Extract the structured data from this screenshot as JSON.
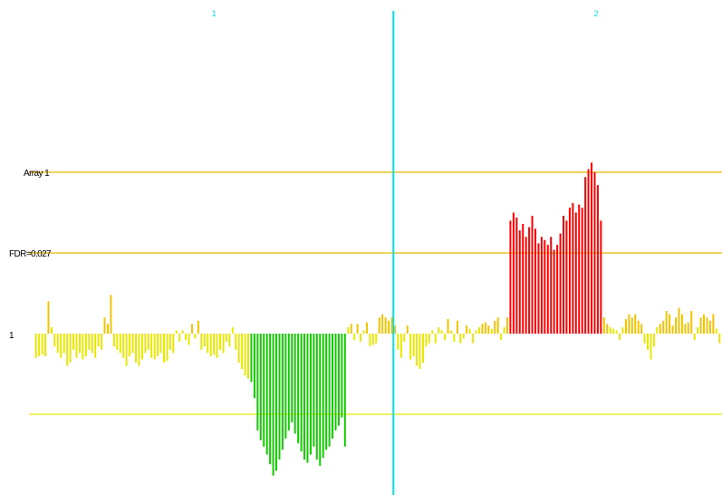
{
  "chart_data": {
    "type": "bar",
    "title": "",
    "xlabel": "",
    "ylabel": "",
    "chromosomes": [
      {
        "label": "1",
        "start": 0,
        "end": 115
      },
      {
        "label": "2",
        "start": 115,
        "end": 245
      }
    ],
    "ylim": [
      -1.0,
      1.25
    ],
    "baseline": {
      "value": 0,
      "label": "1"
    },
    "reference_lines": [
      {
        "label": "Array 1",
        "value": 1.0,
        "color": "#e6b800"
      },
      {
        "label": "FDR=0.027",
        "value": 0.5,
        "color": "#e6b800"
      },
      {
        "label": "",
        "value": -0.5,
        "color": "#e6e600"
      }
    ],
    "colors": {
      "neutral": "#e8e800",
      "mild_gain": "#f2c300",
      "gain": "#ff0000",
      "loss": "#11cc00",
      "divider": "#00e5ee"
    },
    "series": [
      {
        "values": [
          -0.15,
          -0.14,
          -0.13,
          -0.14,
          0.2,
          0.04,
          -0.08,
          -0.12,
          -0.15,
          -0.12,
          -0.2,
          -0.18,
          -0.1,
          -0.15,
          -0.12,
          -0.16,
          -0.14,
          -0.1,
          -0.12,
          -0.15,
          -0.08,
          -0.1,
          0.1,
          0.06,
          0.24,
          -0.08,
          -0.1,
          -0.12,
          -0.15,
          -0.2,
          -0.14,
          -0.12,
          -0.18,
          -0.2,
          -0.16,
          -0.12,
          -0.1,
          -0.15,
          -0.16,
          -0.14,
          -0.12,
          -0.18,
          -0.17,
          -0.1,
          -0.12,
          0.02,
          -0.05,
          0.02,
          -0.04,
          -0.07,
          0.06,
          -0.03,
          0.08,
          -0.1,
          -0.08,
          -0.12,
          -0.14,
          -0.13,
          -0.15,
          -0.1,
          -0.12,
          -0.05,
          -0.08,
          0.04,
          -0.1,
          -0.18,
          -0.22,
          -0.26,
          -0.28,
          -0.3,
          -0.4,
          -0.6,
          -0.66,
          -0.7,
          -0.75,
          -0.81,
          -0.88,
          -0.85,
          -0.78,
          -0.72,
          -0.65,
          -0.6,
          -0.55,
          -0.62,
          -0.68,
          -0.73,
          -0.78,
          -0.8,
          -0.75,
          -0.7,
          -0.78,
          -0.82,
          -0.77,
          -0.72,
          -0.7,
          -0.65,
          -0.6,
          -0.57,
          -0.52,
          -0.7,
          0.04,
          0.06,
          -0.04,
          0.06,
          -0.05,
          0.02,
          0.07,
          -0.08,
          -0.07,
          -0.06,
          0.1,
          0.12,
          0.1,
          0.08,
          0.1,
          0.05,
          -0.1,
          -0.15,
          -0.05,
          0.05,
          -0.16,
          -0.14,
          -0.2,
          -0.22,
          -0.18,
          -0.08,
          -0.06,
          0.02,
          -0.06,
          0.04,
          0.02,
          -0.04,
          0.09,
          0.02,
          -0.05,
          0.08,
          -0.06,
          -0.03,
          0.05,
          0.03,
          -0.06,
          0.02,
          0.04,
          0.06,
          0.07,
          0.05,
          0.03,
          0.08,
          0.1,
          -0.04,
          0.04,
          0.1,
          0.7,
          0.75,
          0.72,
          0.64,
          0.68,
          0.6,
          0.66,
          0.73,
          0.65,
          0.56,
          0.6,
          0.58,
          0.55,
          0.6,
          0.52,
          0.55,
          0.62,
          0.73,
          0.7,
          0.78,
          0.81,
          0.75,
          0.8,
          0.78,
          0.97,
          1.02,
          1.06,
          1.0,
          0.92,
          0.7,
          0.1,
          0.06,
          0.04,
          0.03,
          0.02,
          -0.04,
          0.04,
          0.09,
          0.12,
          0.1,
          0.12,
          0.08,
          0.06,
          -0.06,
          -0.1,
          -0.16,
          -0.08,
          0.04,
          0.06,
          0.08,
          0.14,
          0.12,
          0.05,
          0.1,
          0.16,
          0.12,
          0.06,
          0.07,
          0.14,
          -0.04,
          0.04,
          0.1,
          0.12,
          0.1,
          0.08,
          0.12,
          0.03,
          -0.06
        ]
      }
    ]
  }
}
